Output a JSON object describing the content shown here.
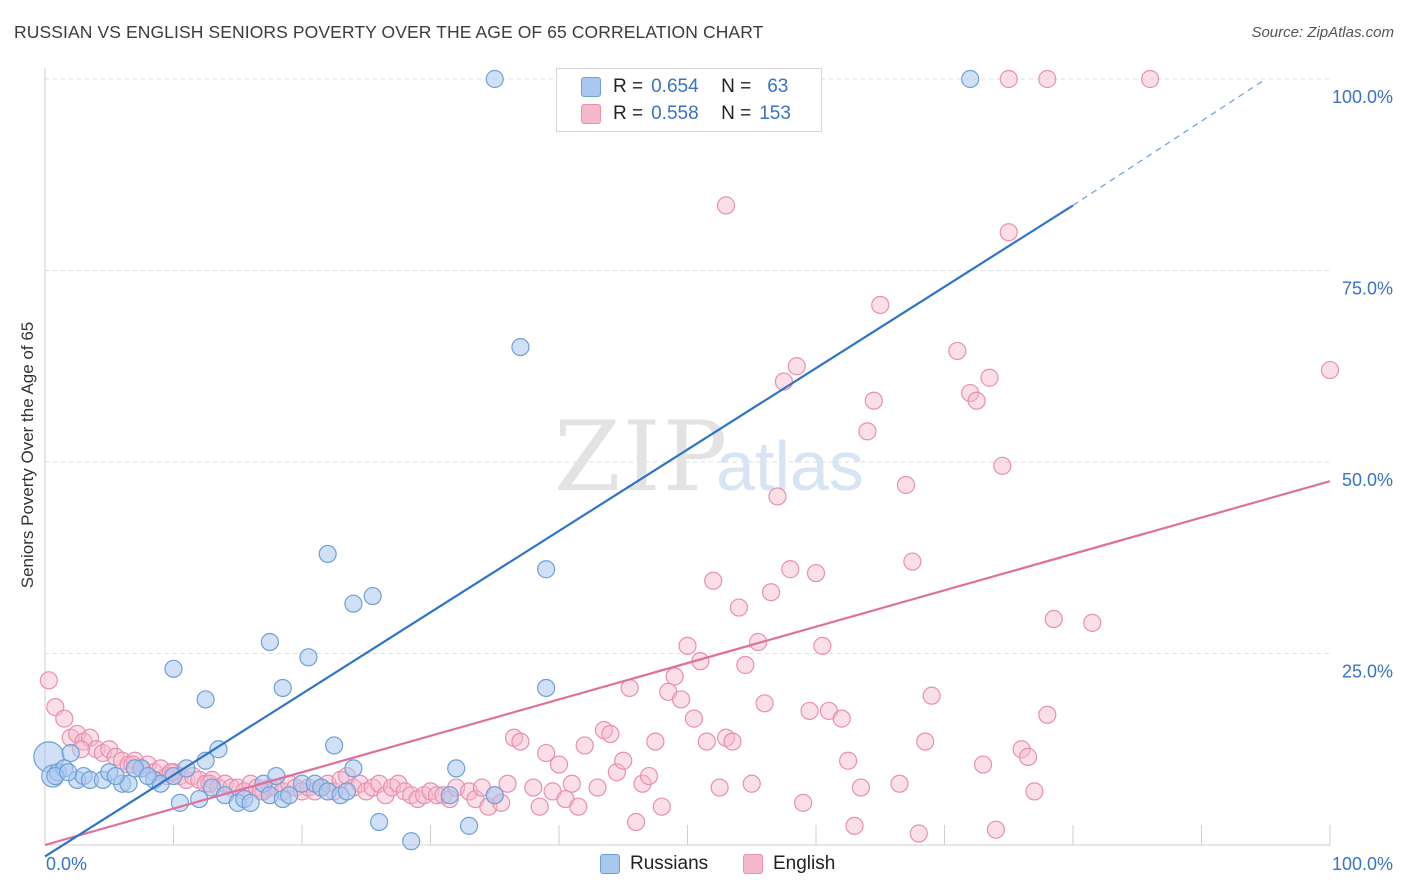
{
  "header": {
    "title": "RUSSIAN VS ENGLISH SENIORS POVERTY OVER THE AGE OF 65 CORRELATION CHART",
    "source": "Source: ZipAtlas.com"
  },
  "watermark": {
    "zip": "ZIP",
    "atlas": "atlas"
  },
  "legend": {
    "rows": [
      {
        "r_label": "R =",
        "r_value": "0.654",
        "n_label": "N =",
        "n_value": "63"
      },
      {
        "r_label": "R =",
        "r_value": "0.558",
        "n_label": "N =",
        "n_value": "153"
      }
    ]
  },
  "bottom_legend": {
    "russians": "Russians",
    "english": "English"
  },
  "colors": {
    "russians_fill": "#a9c8f0",
    "russians_stroke": "#6f9fd8",
    "russians_line": "#2f73c9",
    "english_fill": "#f6b8cc",
    "english_stroke": "#e890ad",
    "english_line": "#e0709a",
    "axis_label": "#3a72c4"
  },
  "chart_data": {
    "type": "scatter",
    "title": "RUSSIAN VS ENGLISH SENIORS POVERTY OVER THE AGE OF 65 CORRELATION CHART",
    "xlabel": "",
    "ylabel": "Seniors Poverty Over the Age of 65",
    "xlim": [
      0,
      100
    ],
    "ylim": [
      0,
      100
    ],
    "x_tick_labels": [
      "0.0%",
      "100.0%"
    ],
    "y_ticks": [
      25,
      50,
      75,
      100
    ],
    "y_tick_labels": [
      "25.0%",
      "50.0%",
      "75.0%",
      "100.0%"
    ],
    "grid": true,
    "series": [
      {
        "name": "Russians",
        "r": 0.654,
        "n": 63,
        "trend": {
          "x0": 0,
          "y0": -1.5,
          "x1": 80,
          "y1": 83.5,
          "dashed_to_x": 95,
          "dashed_to_y": 100
        },
        "points": [
          [
            0.3,
            11.5
          ],
          [
            0.6,
            9.0
          ],
          [
            1.0,
            9.5
          ],
          [
            1.5,
            10.0
          ],
          [
            2.0,
            12.0
          ],
          [
            2.5,
            8.5
          ],
          [
            3.0,
            9.0
          ],
          [
            3.5,
            8.5
          ],
          [
            4.5,
            8.5
          ],
          [
            5.0,
            9.5
          ],
          [
            6.0,
            8.0
          ],
          [
            6.5,
            8.0
          ],
          [
            7.5,
            10.0
          ],
          [
            8.5,
            8.5
          ],
          [
            9.0,
            8.0
          ],
          [
            10.0,
            9.0
          ],
          [
            10.5,
            5.5
          ],
          [
            11.0,
            10.0
          ],
          [
            12.0,
            6.0
          ],
          [
            12.5,
            11.0
          ],
          [
            13.0,
            7.5
          ],
          [
            13.5,
            12.5
          ],
          [
            14.0,
            6.5
          ],
          [
            15.0,
            5.5
          ],
          [
            15.5,
            6.0
          ],
          [
            16.0,
            5.5
          ],
          [
            17.0,
            8.0
          ],
          [
            17.5,
            6.5
          ],
          [
            18.0,
            9.0
          ],
          [
            18.5,
            6.0
          ],
          [
            19.0,
            6.5
          ],
          [
            20.0,
            8.0
          ],
          [
            21.0,
            8.0
          ],
          [
            21.5,
            7.5
          ],
          [
            22.0,
            7.0
          ],
          [
            23.0,
            6.5
          ],
          [
            22.5,
            13.0
          ],
          [
            23.5,
            7.0
          ],
          [
            24.0,
            10.0
          ],
          [
            10.0,
            23.0
          ],
          [
            12.5,
            19.0
          ],
          [
            17.5,
            26.5
          ],
          [
            18.5,
            20.5
          ],
          [
            20.5,
            24.5
          ],
          [
            22.0,
            38.0
          ],
          [
            24.0,
            31.5
          ],
          [
            25.5,
            32.5
          ],
          [
            26.0,
            3.0
          ],
          [
            28.5,
            0.5
          ],
          [
            32.0,
            10.0
          ],
          [
            31.5,
            6.5
          ],
          [
            33.0,
            2.5
          ],
          [
            35.0,
            6.5
          ],
          [
            35.0,
            100.0
          ],
          [
            37.0,
            65.0
          ],
          [
            39.0,
            36.0
          ],
          [
            39.0,
            20.5
          ],
          [
            72.0,
            100.0
          ],
          [
            0.8,
            9.0
          ],
          [
            1.8,
            9.5
          ],
          [
            5.5,
            9.0
          ],
          [
            7.0,
            10.0
          ],
          [
            8.0,
            9.0
          ]
        ]
      },
      {
        "name": "English",
        "r": 0.558,
        "n": 153,
        "trend": {
          "x0": 0,
          "y0": 0,
          "x1": 100,
          "y1": 47.5
        },
        "points": [
          [
            0.3,
            21.5
          ],
          [
            0.8,
            18.0
          ],
          [
            1.5,
            16.5
          ],
          [
            2.0,
            14.0
          ],
          [
            2.5,
            14.5
          ],
          [
            3.0,
            13.5
          ],
          [
            3.5,
            14.0
          ],
          [
            4.0,
            12.5
          ],
          [
            4.5,
            12.0
          ],
          [
            5.0,
            12.5
          ],
          [
            5.5,
            11.5
          ],
          [
            6.0,
            11.0
          ],
          [
            6.5,
            10.5
          ],
          [
            7.0,
            11.0
          ],
          [
            7.5,
            10.0
          ],
          [
            8.0,
            10.5
          ],
          [
            8.5,
            9.5
          ],
          [
            9.0,
            10.0
          ],
          [
            9.5,
            9.0
          ],
          [
            10.0,
            9.5
          ],
          [
            10.5,
            9.0
          ],
          [
            11.0,
            8.5
          ],
          [
            11.5,
            9.0
          ],
          [
            12.0,
            8.5
          ],
          [
            12.5,
            8.0
          ],
          [
            13.0,
            8.5
          ],
          [
            13.5,
            7.5
          ],
          [
            14.0,
            8.0
          ],
          [
            14.5,
            7.5
          ],
          [
            15.0,
            7.5
          ],
          [
            15.5,
            7.0
          ],
          [
            16.0,
            8.0
          ],
          [
            16.5,
            7.5
          ],
          [
            17.0,
            7.0
          ],
          [
            17.5,
            7.5
          ],
          [
            18.0,
            7.5
          ],
          [
            18.5,
            7.0
          ],
          [
            19.0,
            8.0
          ],
          [
            19.5,
            7.5
          ],
          [
            20.0,
            7.0
          ],
          [
            20.5,
            7.5
          ],
          [
            21.0,
            7.0
          ],
          [
            21.5,
            7.5
          ],
          [
            22.0,
            8.0
          ],
          [
            22.5,
            7.0
          ],
          [
            23.0,
            8.5
          ],
          [
            23.5,
            9.0
          ],
          [
            24.0,
            7.5
          ],
          [
            24.5,
            8.0
          ],
          [
            25.0,
            7.0
          ],
          [
            25.5,
            7.5
          ],
          [
            26.0,
            8.0
          ],
          [
            26.5,
            6.5
          ],
          [
            27.0,
            7.5
          ],
          [
            27.5,
            8.0
          ],
          [
            28.0,
            7.0
          ],
          [
            28.5,
            6.5
          ],
          [
            29.0,
            6.0
          ],
          [
            29.5,
            6.5
          ],
          [
            30.0,
            7.0
          ],
          [
            30.5,
            6.5
          ],
          [
            31.0,
            6.5
          ],
          [
            31.5,
            6.0
          ],
          [
            32.0,
            7.5
          ],
          [
            33.0,
            7.0
          ],
          [
            33.5,
            6.0
          ],
          [
            34.0,
            7.5
          ],
          [
            34.5,
            5.0
          ],
          [
            35.0,
            6.5
          ],
          [
            35.5,
            5.5
          ],
          [
            36.0,
            8.0
          ],
          [
            36.5,
            14.0
          ],
          [
            37.0,
            13.5
          ],
          [
            38.0,
            7.5
          ],
          [
            38.5,
            5.0
          ],
          [
            39.0,
            12.0
          ],
          [
            39.5,
            7.0
          ],
          [
            40.0,
            10.5
          ],
          [
            40.5,
            6.0
          ],
          [
            41.0,
            8.0
          ],
          [
            41.5,
            5.0
          ],
          [
            42.0,
            13.0
          ],
          [
            43.0,
            7.5
          ],
          [
            43.5,
            15.0
          ],
          [
            44.0,
            14.5
          ],
          [
            44.5,
            9.5
          ],
          [
            45.0,
            11.0
          ],
          [
            45.5,
            20.5
          ],
          [
            46.0,
            3.0
          ],
          [
            46.5,
            8.0
          ],
          [
            47.0,
            9.0
          ],
          [
            47.5,
            13.5
          ],
          [
            48.0,
            5.0
          ],
          [
            48.5,
            20.0
          ],
          [
            49.0,
            22.0
          ],
          [
            49.5,
            19.0
          ],
          [
            50.0,
            26.0
          ],
          [
            50.5,
            16.5
          ],
          [
            51.0,
            24.0
          ],
          [
            51.5,
            13.5
          ],
          [
            52.0,
            34.5
          ],
          [
            52.5,
            7.5
          ],
          [
            53.0,
            14.0
          ],
          [
            53.5,
            13.5
          ],
          [
            54.0,
            31.0
          ],
          [
            54.5,
            23.5
          ],
          [
            55.0,
            8.0
          ],
          [
            55.5,
            26.5
          ],
          [
            56.0,
            18.5
          ],
          [
            56.5,
            33.0
          ],
          [
            57.0,
            45.5
          ],
          [
            57.5,
            60.5
          ],
          [
            58.0,
            36.0
          ],
          [
            58.5,
            62.5
          ],
          [
            59.0,
            5.5
          ],
          [
            59.5,
            17.5
          ],
          [
            60.0,
            35.5
          ],
          [
            60.5,
            26.0
          ],
          [
            61.0,
            17.5
          ],
          [
            62.0,
            16.5
          ],
          [
            62.5,
            11.0
          ],
          [
            63.0,
            2.5
          ],
          [
            63.5,
            7.5
          ],
          [
            64.0,
            54.0
          ],
          [
            64.5,
            58.0
          ],
          [
            65.0,
            70.5
          ],
          [
            66.5,
            8.0
          ],
          [
            67.0,
            47.0
          ],
          [
            67.5,
            37.0
          ],
          [
            68.0,
            1.5
          ],
          [
            68.5,
            13.5
          ],
          [
            69.0,
            19.5
          ],
          [
            71.0,
            64.5
          ],
          [
            72.0,
            59.0
          ],
          [
            72.5,
            58.0
          ],
          [
            73.0,
            10.5
          ],
          [
            73.5,
            61.0
          ],
          [
            74.0,
            2.0
          ],
          [
            74.5,
            49.5
          ],
          [
            75.0,
            80.0
          ],
          [
            76.0,
            12.5
          ],
          [
            76.5,
            11.5
          ],
          [
            77.0,
            7.0
          ],
          [
            78.0,
            17.0
          ],
          [
            78.5,
            29.5
          ],
          [
            81.5,
            29.0
          ],
          [
            53.0,
            83.5
          ],
          [
            75.0,
            100.0
          ],
          [
            78.0,
            100.0
          ],
          [
            86.0,
            100.0
          ],
          [
            100.0,
            62.0
          ],
          [
            2.8,
            12.5
          ],
          [
            6.8,
            10.5
          ],
          [
            9.8,
            9.5
          ],
          [
            12.8,
            8.0
          ],
          [
            16.8,
            7.0
          ]
        ]
      }
    ]
  }
}
